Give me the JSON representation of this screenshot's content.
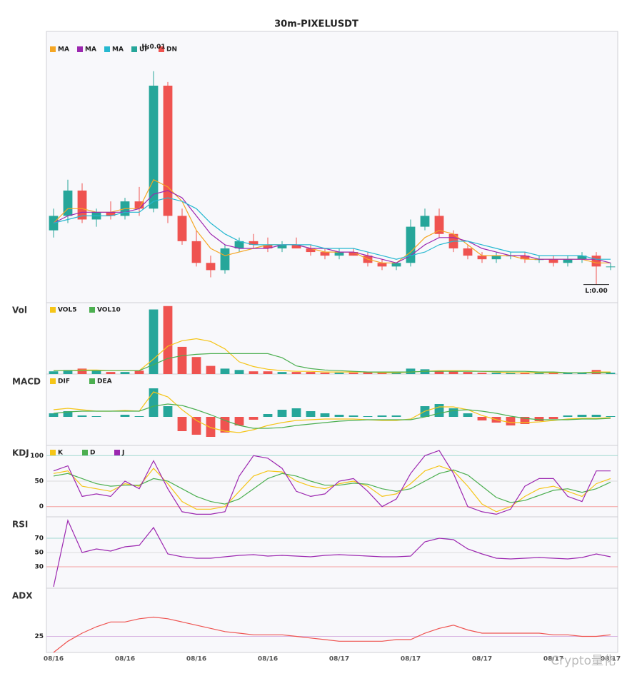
{
  "chart_data": [
    {
      "type": "candlestick",
      "title": "30m-PIXELUSDT",
      "up_color": "#26a69a",
      "down_color": "#ef5350",
      "ylim": [
        0.004,
        0.0115
      ],
      "open": [
        0.006,
        0.0064,
        0.0071,
        0.0063,
        0.0065,
        0.0064,
        0.0068,
        0.0066,
        0.01,
        0.0064,
        0.0057,
        0.0051,
        0.0049,
        0.0055,
        0.0057,
        0.0056,
        0.0055,
        0.0056,
        0.0055,
        0.0054,
        0.0053,
        0.0054,
        0.0053,
        0.0051,
        0.005,
        0.0051,
        0.0061,
        0.0064,
        0.0059,
        0.0055,
        0.0053,
        0.0052,
        0.0053,
        0.0053,
        0.0052,
        0.0052,
        0.0051,
        0.0052,
        0.0053,
        0.005
      ],
      "high": [
        0.0066,
        0.0074,
        0.0073,
        0.0066,
        0.0068,
        0.0069,
        0.0072,
        0.0104,
        0.0101,
        0.0066,
        0.006,
        0.0053,
        0.0056,
        0.0058,
        0.0059,
        0.0058,
        0.0057,
        0.0058,
        0.0056,
        0.0055,
        0.0055,
        0.0055,
        0.0054,
        0.0052,
        0.0051,
        0.0063,
        0.0066,
        0.0066,
        0.006,
        0.0056,
        0.0054,
        0.0054,
        0.0054,
        0.0054,
        0.0053,
        0.0053,
        0.0053,
        0.0054,
        0.0054,
        0.0051
      ],
      "low": [
        0.0058,
        0.0062,
        0.0062,
        0.0061,
        0.0063,
        0.0063,
        0.0064,
        0.0065,
        0.0062,
        0.0056,
        0.005,
        0.0047,
        0.0048,
        0.0054,
        0.0055,
        0.0054,
        0.0054,
        0.0055,
        0.0053,
        0.0052,
        0.0052,
        0.0053,
        0.005,
        0.0049,
        0.0049,
        0.005,
        0.006,
        0.0058,
        0.0054,
        0.0052,
        0.0051,
        0.0051,
        0.0052,
        0.0051,
        0.0051,
        0.005,
        0.005,
        0.0051,
        0.0045,
        0.0049
      ],
      "close": [
        0.0064,
        0.0071,
        0.0063,
        0.0065,
        0.0064,
        0.0068,
        0.0066,
        0.01,
        0.0064,
        0.0057,
        0.0051,
        0.0049,
        0.0055,
        0.0057,
        0.0056,
        0.0055,
        0.0056,
        0.0055,
        0.0054,
        0.0053,
        0.0054,
        0.0053,
        0.0051,
        0.005,
        0.0051,
        0.0061,
        0.0064,
        0.0059,
        0.0055,
        0.0053,
        0.0052,
        0.0053,
        0.0053,
        0.0052,
        0.0052,
        0.0051,
        0.0052,
        0.0053,
        0.005,
        0.005
      ],
      "series": [
        {
          "name": "MA",
          "color": "#f5a623",
          "values": [
            0.0062,
            0.0066,
            0.0066,
            0.0065,
            0.0065,
            0.0066,
            0.0066,
            0.0074,
            0.0072,
            0.0068,
            0.006,
            0.0055,
            0.0053,
            0.0054,
            0.0055,
            0.0056,
            0.0056,
            0.0056,
            0.0055,
            0.0054,
            0.0054,
            0.0054,
            0.0052,
            0.0051,
            0.0051,
            0.0054,
            0.0058,
            0.006,
            0.0059,
            0.0056,
            0.0053,
            0.0053,
            0.0053,
            0.0052,
            0.0052,
            0.0052,
            0.0052,
            0.0052,
            0.0051,
            0.0051
          ]
        },
        {
          "name": "MA",
          "color": "#9c27b0",
          "values": [
            0.0062,
            0.0064,
            0.0065,
            0.0065,
            0.0065,
            0.0065,
            0.0066,
            0.007,
            0.0071,
            0.0069,
            0.0064,
            0.0059,
            0.0056,
            0.0055,
            0.0055,
            0.0055,
            0.0056,
            0.0056,
            0.0055,
            0.0055,
            0.0054,
            0.0054,
            0.0053,
            0.0052,
            0.0051,
            0.0053,
            0.0056,
            0.0058,
            0.0058,
            0.0057,
            0.0055,
            0.0054,
            0.0053,
            0.0053,
            0.0052,
            0.0052,
            0.0052,
            0.0052,
            0.0052,
            0.0051
          ]
        },
        {
          "name": "MA",
          "color": "#26b8d0",
          "values": [
            0.0062,
            0.0063,
            0.0064,
            0.0064,
            0.0064,
            0.0065,
            0.0065,
            0.0068,
            0.0069,
            0.0068,
            0.0066,
            0.0062,
            0.0059,
            0.0057,
            0.0056,
            0.0056,
            0.0056,
            0.0056,
            0.0056,
            0.0055,
            0.0055,
            0.0055,
            0.0054,
            0.0053,
            0.0052,
            0.0053,
            0.0054,
            0.0056,
            0.0057,
            0.0057,
            0.0056,
            0.0055,
            0.0054,
            0.0054,
            0.0053,
            0.0053,
            0.0053,
            0.0053,
            0.0052,
            0.0052
          ]
        }
      ],
      "legend_extra": [
        {
          "name": "UP",
          "color": "#26a69a"
        },
        {
          "name": "DN",
          "color": "#ef5350"
        }
      ],
      "high_label": "H:0.01",
      "low_label": "L:0.00",
      "watermark": "Crypto量化"
    },
    {
      "type": "volume",
      "label": "Vol",
      "ylim": [
        0,
        105
      ],
      "values": [
        4,
        6,
        8,
        5,
        3,
        3,
        5,
        95,
        100,
        40,
        25,
        12,
        8,
        6,
        4,
        4,
        3,
        3,
        3,
        2,
        2,
        2,
        3,
        2,
        2,
        8,
        7,
        5,
        4,
        3,
        2,
        2,
        2,
        2,
        2,
        2,
        2,
        2,
        6,
        2
      ],
      "series": [
        {
          "name": "VOL5",
          "color": "#f5c518",
          "values": [
            5,
            5,
            6,
            6,
            5,
            5,
            5,
            22,
            41,
            49,
            52,
            48,
            37,
            18,
            11,
            7,
            5,
            4,
            4,
            3,
            3,
            3,
            3,
            2,
            2,
            3,
            4,
            5,
            5,
            5,
            4,
            3,
            2,
            2,
            2,
            2,
            2,
            2,
            3,
            3
          ]
        },
        {
          "name": "VOL10",
          "color": "#4caf50",
          "values": [
            5,
            5,
            5,
            5,
            5,
            5,
            5,
            14,
            23,
            27,
            29,
            30,
            30,
            30,
            30,
            30,
            24,
            12,
            8,
            6,
            5,
            4,
            3,
            3,
            3,
            3,
            4,
            4,
            4,
            4,
            4,
            4,
            4,
            4,
            3,
            3,
            2,
            2,
            2,
            2
          ]
        }
      ]
    },
    {
      "type": "macd",
      "label": "MACD",
      "ylim": [
        -40,
        60
      ],
      "values": [
        5,
        8,
        2,
        1,
        0,
        3,
        1,
        40,
        15,
        -20,
        -25,
        -28,
        -22,
        -12,
        -4,
        4,
        10,
        12,
        8,
        5,
        3,
        2,
        1,
        2,
        2,
        0,
        15,
        18,
        12,
        5,
        -5,
        -8,
        -12,
        -10,
        -6,
        -3,
        2,
        3,
        3,
        1
      ],
      "series": [
        {
          "name": "DIF",
          "color": "#f5c518",
          "values": [
            10,
            12,
            10,
            8,
            8,
            9,
            8,
            35,
            28,
            10,
            -5,
            -15,
            -20,
            -22,
            -18,
            -12,
            -8,
            -5,
            -4,
            -3,
            -3,
            -3,
            -4,
            -5,
            -5,
            -3,
            8,
            14,
            14,
            10,
            2,
            -4,
            -8,
            -8,
            -7,
            -5,
            -3,
            -2,
            -2,
            -1
          ]
        },
        {
          "name": "DEA",
          "color": "#4caf50",
          "values": [
            5,
            7,
            8,
            8,
            8,
            8,
            8,
            15,
            18,
            16,
            10,
            3,
            -5,
            -12,
            -16,
            -16,
            -15,
            -12,
            -10,
            -8,
            -6,
            -5,
            -4,
            -4,
            -4,
            -4,
            0,
            5,
            9,
            10,
            8,
            5,
            1,
            -2,
            -4,
            -4,
            -4,
            -3,
            -3,
            -2
          ]
        }
      ]
    },
    {
      "type": "line",
      "label": "KDJ",
      "ylim": [
        -20,
        120
      ],
      "yticks": [
        0,
        50,
        100
      ],
      "tick_colors": [
        "#f4a0a0",
        "#dddddd",
        "#9fd9d0"
      ],
      "series": [
        {
          "name": "K",
          "color": "#f5c518",
          "values": [
            65,
            70,
            40,
            35,
            30,
            45,
            40,
            75,
            45,
            10,
            -5,
            -5,
            0,
            30,
            60,
            70,
            68,
            50,
            40,
            35,
            45,
            50,
            40,
            20,
            25,
            45,
            70,
            80,
            70,
            40,
            5,
            -10,
            0,
            20,
            35,
            40,
            30,
            20,
            45,
            55
          ]
        },
        {
          "name": "D",
          "color": "#4caf50",
          "values": [
            60,
            65,
            55,
            45,
            40,
            42,
            42,
            55,
            50,
            35,
            20,
            10,
            5,
            15,
            35,
            55,
            65,
            60,
            50,
            42,
            42,
            46,
            44,
            35,
            30,
            35,
            50,
            65,
            72,
            62,
            40,
            18,
            8,
            12,
            22,
            32,
            35,
            28,
            35,
            48
          ]
        },
        {
          "name": "J",
          "color": "#9c27b0",
          "values": [
            70,
            80,
            20,
            25,
            20,
            50,
            35,
            90,
            35,
            -10,
            -15,
            -15,
            -10,
            60,
            100,
            95,
            75,
            30,
            20,
            25,
            50,
            55,
            30,
            0,
            15,
            65,
            100,
            110,
            65,
            0,
            -10,
            -15,
            -5,
            40,
            55,
            55,
            20,
            10,
            70,
            70
          ]
        }
      ]
    },
    {
      "type": "line",
      "label": "RSI",
      "ylim": [
        0,
        100
      ],
      "yticks": [
        30,
        50,
        70
      ],
      "tick_colors": [
        "#f4a0a0",
        "#dddddd",
        "#9fd9d0"
      ],
      "color": "#9c27b0",
      "values": [
        2,
        95,
        50,
        55,
        52,
        58,
        60,
        85,
        48,
        44,
        42,
        42,
        44,
        46,
        47,
        45,
        46,
        45,
        44,
        46,
        47,
        46,
        45,
        44,
        44,
        45,
        65,
        70,
        68,
        55,
        48,
        42,
        41,
        42,
        43,
        42,
        41,
        43,
        48,
        44
      ]
    },
    {
      "type": "line",
      "label": "ADX",
      "ylim": [
        15,
        55
      ],
      "yticks": [
        25
      ],
      "tick_colors": [
        "#d8b4e2"
      ],
      "color": "#ef5350",
      "values": [
        15,
        22,
        27,
        31,
        34,
        34,
        36,
        37,
        36,
        34,
        32,
        30,
        28,
        27,
        26,
        26,
        26,
        25,
        24,
        23,
        22,
        22,
        22,
        22,
        23,
        23,
        27,
        30,
        32,
        29,
        27,
        27,
        27,
        27,
        27,
        26,
        26,
        25,
        25,
        26
      ],
      "categories": [
        "08/16",
        null,
        null,
        null,
        null,
        "08/16",
        null,
        null,
        null,
        null,
        "08/16",
        null,
        null,
        null,
        null,
        "08/16",
        null,
        null,
        null,
        null,
        "08/17",
        null,
        null,
        null,
        null,
        "08/17",
        null,
        null,
        null,
        null,
        "08/17",
        null,
        null,
        null,
        null,
        "08/17",
        null,
        null,
        null,
        "08/17"
      ]
    }
  ]
}
